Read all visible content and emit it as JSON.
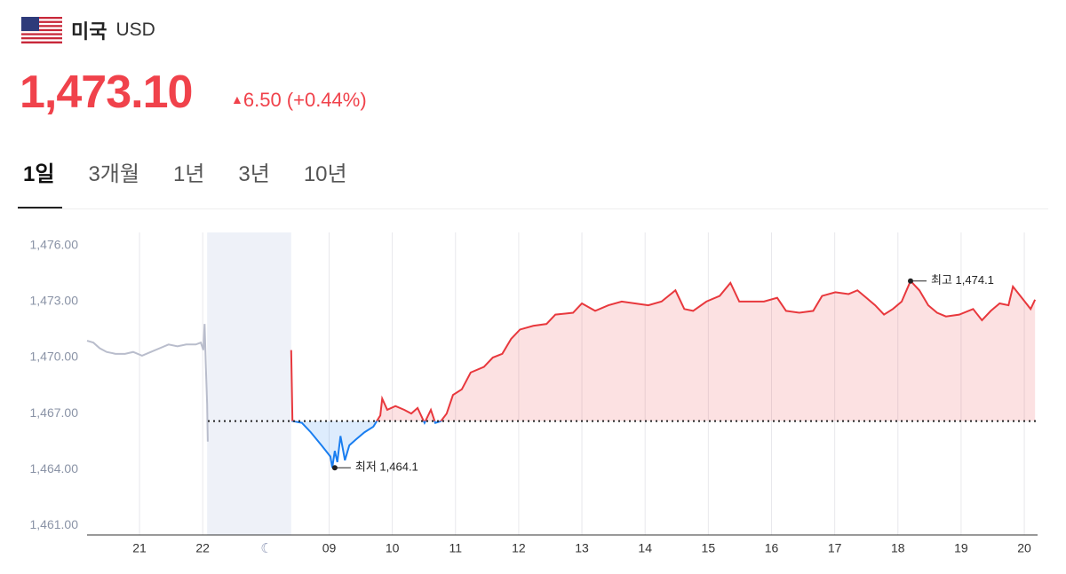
{
  "header": {
    "country": "미국",
    "currency": "USD",
    "price": "1,473.10",
    "change": "6.50 (+0.44%)"
  },
  "tabs": [
    "1일",
    "3개월",
    "1년",
    "3년",
    "10년"
  ],
  "chart_data": {
    "type": "line",
    "xlim": [
      -0.83,
      14.21
    ],
    "ylim": [
      1460.5,
      1476.7
    ],
    "yticks": [
      {
        "value": 1476,
        "label": "1,476.00"
      },
      {
        "value": 1473,
        "label": "1,473.00"
      },
      {
        "value": 1470,
        "label": "1,470.00"
      },
      {
        "value": 1467,
        "label": "1,467.00"
      },
      {
        "value": 1464,
        "label": "1,464.00"
      },
      {
        "value": 1461,
        "label": "1,461.00"
      }
    ],
    "xticks": [
      {
        "value": 0,
        "label": "21"
      },
      {
        "value": 1,
        "label": "22"
      },
      {
        "value": 3,
        "label": "09"
      },
      {
        "value": 4,
        "label": "10"
      },
      {
        "value": 5,
        "label": "11"
      },
      {
        "value": 6,
        "label": "12"
      },
      {
        "value": 7,
        "label": "13"
      },
      {
        "value": 8,
        "label": "14"
      },
      {
        "value": 9,
        "label": "15"
      },
      {
        "value": 10,
        "label": "16"
      },
      {
        "value": 11,
        "label": "17"
      },
      {
        "value": 12,
        "label": "18"
      },
      {
        "value": 13,
        "label": "19"
      },
      {
        "value": 14,
        "label": "20"
      }
    ],
    "grid": true,
    "baseline": 1466.6,
    "night_band": [
      1.07,
      2.4
    ],
    "night_color": "#eef1f8",
    "series": [
      {
        "color": "#b9bdcc",
        "x": [
          -0.83,
          -0.73,
          -0.63,
          -0.52,
          -0.38,
          -0.23,
          -0.1,
          0.04,
          0.18,
          0.32,
          0.46,
          0.6,
          0.74,
          0.89,
          0.97,
          1.01,
          1.03,
          1.05,
          1.07,
          1.08
        ],
        "values": [
          1470.9,
          1470.8,
          1470.5,
          1470.3,
          1470.2,
          1470.2,
          1470.3,
          1470.1,
          1470.3,
          1470.5,
          1470.7,
          1470.6,
          1470.7,
          1470.7,
          1470.8,
          1470.4,
          1471.8,
          1469.5,
          1467.5,
          1465.5
        ]
      },
      {
        "color": "#e8383d",
        "below_color": "#1a7ef0",
        "x": [
          2.4,
          2.42,
          2.57,
          2.71,
          2.88,
          3.02,
          3.05,
          3.09,
          3.13,
          3.18,
          3.25,
          3.32,
          3.42,
          3.56,
          3.7,
          3.81,
          3.84,
          3.92,
          4.05,
          4.19,
          4.3,
          4.4,
          4.51,
          4.61,
          4.68,
          4.77,
          4.86,
          4.96,
          5.1,
          5.24,
          5.45,
          5.59,
          5.74,
          5.88,
          6.02,
          6.23,
          6.44,
          6.58,
          6.86,
          7.0,
          7.21,
          7.42,
          7.63,
          7.84,
          8.05,
          8.26,
          8.48,
          8.62,
          8.76,
          8.97,
          9.18,
          9.35,
          9.49,
          9.67,
          9.88,
          10.09,
          10.23,
          10.44,
          10.66,
          10.8,
          11.01,
          11.22,
          11.36,
          11.5,
          11.64,
          11.78,
          11.92,
          12.06,
          12.2,
          12.34,
          12.48,
          12.62,
          12.76,
          12.97,
          13.19,
          13.33,
          13.47,
          13.61,
          13.75,
          13.82,
          13.96,
          14.1,
          14.17
        ],
        "values": [
          1470.4,
          1466.6,
          1466.5,
          1466.0,
          1465.3,
          1464.7,
          1464.1,
          1465.0,
          1464.4,
          1465.8,
          1464.5,
          1465.3,
          1465.6,
          1466.0,
          1466.3,
          1466.9,
          1467.8,
          1467.2,
          1467.4,
          1467.2,
          1467.0,
          1467.3,
          1466.5,
          1467.2,
          1466.5,
          1466.6,
          1467.0,
          1468.0,
          1468.3,
          1469.2,
          1469.5,
          1470.0,
          1470.2,
          1471.0,
          1471.5,
          1471.7,
          1471.8,
          1472.3,
          1472.4,
          1472.9,
          1472.5,
          1472.8,
          1473.0,
          1472.9,
          1472.8,
          1473.0,
          1473.6,
          1472.6,
          1472.5,
          1473.0,
          1473.3,
          1474.0,
          1473.0,
          1473.0,
          1473.0,
          1473.2,
          1472.5,
          1472.4,
          1472.5,
          1473.3,
          1473.5,
          1473.4,
          1473.6,
          1473.2,
          1472.8,
          1472.3,
          1472.6,
          1473.0,
          1474.1,
          1473.6,
          1472.8,
          1472.4,
          1472.2,
          1472.3,
          1472.6,
          1472.0,
          1472.5,
          1472.9,
          1472.8,
          1473.8,
          1473.2,
          1472.6,
          1473.1
        ]
      }
    ],
    "annotations": [
      {
        "label": "최저 1,464.1",
        "x": 3.09,
        "y": 1464.1
      },
      {
        "label": "최고 1,474.1",
        "x": 12.2,
        "y": 1474.1
      }
    ]
  }
}
